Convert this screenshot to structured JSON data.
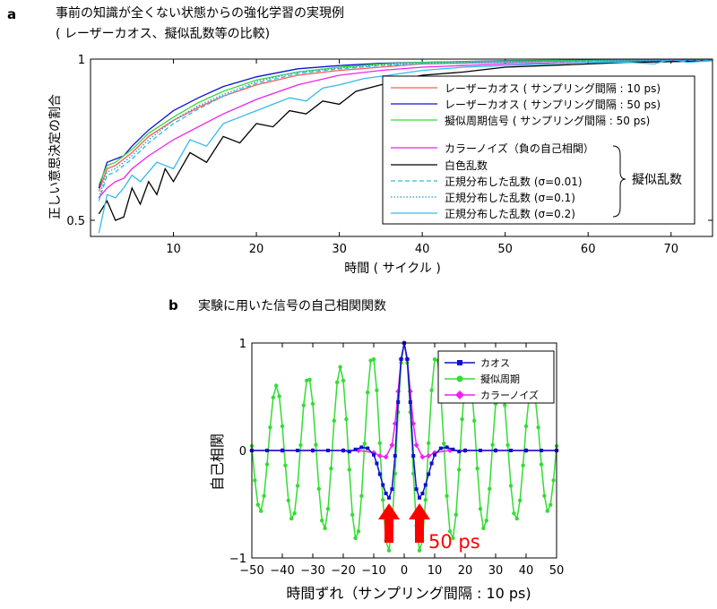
{
  "chart_data": [
    {
      "panel_label": "a",
      "type": "line",
      "title": "事前の知識が全くない状態からの強化学習の実現例",
      "subtitle": "( レーザーカオス、擬似乱数等の比較)",
      "xlabel": "時間 ( サイクル )",
      "ylabel": "正しい意思決定の割合",
      "xlim": [
        0,
        75
      ],
      "ylim": [
        0.45,
        1.0
      ],
      "xticks": [
        "10",
        "20",
        "30",
        "40",
        "50",
        "60",
        "70"
      ],
      "xtick_values": [
        10,
        20,
        30,
        40,
        50,
        60,
        70
      ],
      "yticks": [
        "0.5",
        "1"
      ],
      "ytick_values": [
        0.5,
        1
      ],
      "legend_placement": "right",
      "brace_label": "擬似乱数",
      "series": [
        {
          "name": "レーザーカオス ( サンプリング間隔 : 10 ps)",
          "color": "#ff5a5a",
          "style": "solid",
          "x": [
            1,
            2,
            3,
            4,
            5,
            7,
            10,
            13,
            16,
            20,
            25,
            30,
            35,
            40,
            50,
            60,
            70,
            75
          ],
          "y": [
            0.59,
            0.66,
            0.67,
            0.69,
            0.71,
            0.76,
            0.81,
            0.85,
            0.885,
            0.92,
            0.95,
            0.965,
            0.975,
            0.985,
            0.99,
            0.995,
            0.997,
            0.998
          ]
        },
        {
          "name": "レーザーカオス ( サンプリング間隔 : 50 ps)",
          "color": "#1010d0",
          "style": "solid",
          "x": [
            1,
            2,
            3,
            4,
            5,
            7,
            10,
            13,
            16,
            20,
            25,
            30,
            35,
            40,
            50,
            60,
            70,
            75
          ],
          "y": [
            0.6,
            0.68,
            0.69,
            0.7,
            0.73,
            0.78,
            0.84,
            0.88,
            0.915,
            0.945,
            0.97,
            0.98,
            0.987,
            0.99,
            0.995,
            0.997,
            0.998,
            0.999
          ]
        },
        {
          "name": "擬似周期信号 ( サンプリング間隔 : 50 ps)",
          "color": "#33dd33",
          "style": "solid",
          "x": [
            1,
            2,
            3,
            4,
            5,
            7,
            10,
            13,
            16,
            20,
            25,
            30,
            35,
            40,
            50,
            60,
            70,
            75
          ],
          "y": [
            0.61,
            0.67,
            0.68,
            0.7,
            0.72,
            0.77,
            0.82,
            0.865,
            0.9,
            0.935,
            0.96,
            0.975,
            0.985,
            0.99,
            0.994,
            0.996,
            0.998,
            0.999
          ]
        },
        {
          "name": "カラーノイズ（負の自己相関）",
          "color": "#ee22ee",
          "style": "solid",
          "x": [
            1,
            2,
            3,
            4,
            5,
            7,
            10,
            13,
            16,
            20,
            25,
            30,
            35,
            40,
            50,
            60,
            70,
            75
          ],
          "y": [
            0.57,
            0.6,
            0.62,
            0.63,
            0.66,
            0.7,
            0.75,
            0.79,
            0.83,
            0.875,
            0.92,
            0.95,
            0.965,
            0.975,
            0.985,
            0.99,
            0.995,
            0.997
          ]
        },
        {
          "name": "白色乱数",
          "color": "#000000",
          "style": "solid",
          "x": [
            1,
            2,
            3,
            4,
            5,
            6,
            7,
            8,
            9,
            10,
            12,
            14,
            16,
            18,
            20,
            22,
            24,
            26,
            28,
            30,
            32,
            35,
            38,
            40,
            45,
            50,
            55,
            60,
            65,
            70,
            75
          ],
          "y": [
            0.52,
            0.56,
            0.5,
            0.51,
            0.6,
            0.55,
            0.62,
            0.58,
            0.66,
            0.62,
            0.71,
            0.68,
            0.76,
            0.74,
            0.8,
            0.79,
            0.84,
            0.83,
            0.87,
            0.86,
            0.9,
            0.92,
            0.94,
            0.95,
            0.96,
            0.975,
            0.98,
            0.985,
            0.99,
            0.992,
            0.995
          ]
        },
        {
          "name": "正規分布した乱数 (σ=0.01)",
          "color": "#33bbdd",
          "style": "dashed",
          "x": [
            1,
            2,
            3,
            4,
            5,
            7,
            10,
            13,
            16,
            20,
            25,
            30,
            35,
            40,
            50,
            60,
            70,
            75
          ],
          "y": [
            0.56,
            0.64,
            0.65,
            0.67,
            0.69,
            0.74,
            0.8,
            0.845,
            0.885,
            0.925,
            0.955,
            0.97,
            0.98,
            0.985,
            0.99,
            0.994,
            0.996,
            0.997
          ]
        },
        {
          "name": "正規分布した乱数 (σ=0.1)",
          "color": "#2299cc",
          "style": "dotted",
          "x": [
            1,
            2,
            3,
            4,
            5,
            7,
            10,
            13,
            16,
            20,
            25,
            30,
            35,
            40,
            50,
            60,
            70,
            75
          ],
          "y": [
            0.57,
            0.65,
            0.66,
            0.68,
            0.7,
            0.75,
            0.81,
            0.855,
            0.89,
            0.93,
            0.96,
            0.972,
            0.982,
            0.988,
            0.992,
            0.995,
            0.997,
            0.998
          ]
        },
        {
          "name": "正規分布した乱数 (σ=0.2)",
          "color": "#33bbee",
          "style": "solid",
          "x": [
            1,
            2,
            3,
            4,
            5,
            6,
            8,
            10,
            12,
            14,
            16,
            18,
            20,
            22,
            24,
            26,
            28,
            30,
            33,
            36,
            40,
            45,
            50,
            55,
            60,
            65,
            68,
            70,
            72,
            75
          ],
          "y": [
            0.46,
            0.58,
            0.57,
            0.6,
            0.64,
            0.62,
            0.68,
            0.66,
            0.75,
            0.73,
            0.8,
            0.82,
            0.84,
            0.86,
            0.88,
            0.87,
            0.91,
            0.92,
            0.94,
            0.95,
            0.965,
            0.975,
            0.98,
            0.985,
            0.99,
            0.99,
            0.985,
            1.0,
            0.99,
            0.995
          ]
        }
      ]
    },
    {
      "panel_label": "b",
      "type": "line",
      "title": "実験に用いた信号の自己相関関数",
      "xlabel": "時間ずれ（サンプリング間隔 : 10 ps)",
      "ylabel": "自己相関",
      "xlim": [
        -50,
        50
      ],
      "ylim": [
        -1,
        1
      ],
      "xticks": [
        "−50",
        "−40",
        "−30",
        "−20",
        "−10",
        "0",
        "10",
        "20",
        "30",
        "40",
        "50"
      ],
      "xtick_values": [
        -50,
        -40,
        -30,
        -20,
        -10,
        0,
        10,
        20,
        30,
        40,
        50
      ],
      "yticks": [
        "−1",
        "0",
        "1"
      ],
      "ytick_values": [
        -1,
        0,
        1
      ],
      "legend_placement": "top-right",
      "annotation": "50 ps",
      "annotation_color": "#ff0000",
      "arrow_x": [
        -5,
        5
      ],
      "series": [
        {
          "name": "カオス",
          "color": "#1010d0",
          "marker": "square",
          "x": [
            -50,
            -45,
            -40,
            -35,
            -30,
            -25,
            -20,
            -18,
            -16,
            -14,
            -12,
            -10,
            -9,
            -8,
            -7,
            -6,
            -5,
            -4,
            -3,
            -2,
            -1,
            0,
            1,
            2,
            3,
            4,
            5,
            6,
            7,
            8,
            9,
            10,
            12,
            14,
            16,
            18,
            20,
            25,
            30,
            35,
            40,
            45,
            50
          ],
          "y": [
            0,
            0,
            0,
            0,
            0,
            0,
            0,
            -0.01,
            0.01,
            0.03,
            0.02,
            -0.04,
            -0.12,
            -0.22,
            -0.32,
            -0.4,
            -0.44,
            -0.36,
            -0.05,
            0.45,
            0.85,
            1.0,
            0.85,
            0.45,
            -0.05,
            -0.36,
            -0.44,
            -0.4,
            -0.32,
            -0.22,
            -0.12,
            -0.04,
            0.02,
            0.03,
            0.01,
            -0.01,
            0,
            0,
            0,
            0,
            0,
            0,
            0
          ]
        },
        {
          "name": "擬似周期",
          "color": "#33dd33",
          "marker": "circle",
          "x": [],
          "y": [],
          "period": 10.5,
          "decay": 0.012
        },
        {
          "name": "カラーノイズ",
          "color": "#ee22ee",
          "marker": "diamond",
          "x": [
            -50,
            -40,
            -30,
            -20,
            -15,
            -10,
            -8,
            -6,
            -4,
            -3,
            -2,
            -1,
            0,
            1,
            2,
            3,
            4,
            6,
            8,
            10,
            15,
            20,
            30,
            40,
            50
          ],
          "y": [
            0,
            0,
            0,
            0,
            0,
            -0.02,
            -0.05,
            -0.06,
            0.05,
            0.25,
            0.55,
            0.85,
            1.0,
            0.85,
            0.55,
            0.25,
            0.05,
            -0.06,
            -0.05,
            -0.02,
            0,
            0,
            0,
            0,
            0
          ]
        }
      ]
    }
  ]
}
